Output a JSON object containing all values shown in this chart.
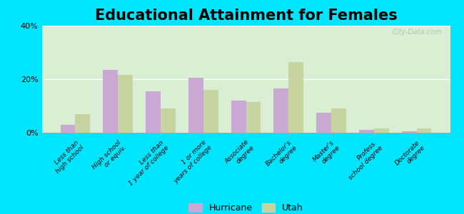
{
  "title": "Educational Attainment for Females",
  "categories": [
    "Less than\nhigh school",
    "High school\nor equiv.",
    "Less than\n1 year of college",
    "1 or more\nyears of college",
    "Associate\ndegree",
    "Bachelor's\ndegree",
    "Master's\ndegree",
    "Profess.\nschool degree",
    "Doctorate\ndegree"
  ],
  "hurricane_values": [
    3.0,
    23.5,
    15.5,
    20.5,
    12.0,
    16.5,
    7.5,
    1.0,
    0.5
  ],
  "utah_values": [
    7.0,
    21.5,
    9.0,
    16.0,
    11.5,
    26.5,
    9.0,
    1.5,
    1.5
  ],
  "hurricane_color": "#c9a8d4",
  "utah_color": "#c8d4a0",
  "background_color": "#d8efd4",
  "ylim": [
    0,
    40
  ],
  "yticks": [
    0,
    20,
    40
  ],
  "ytick_labels": [
    "0%",
    "20%",
    "40%"
  ],
  "outer_bg": "#00e5ff",
  "title_fontsize": 15,
  "legend_labels": [
    "Hurricane",
    "Utah"
  ],
  "bar_width": 0.35,
  "watermark": "City-Data.com"
}
